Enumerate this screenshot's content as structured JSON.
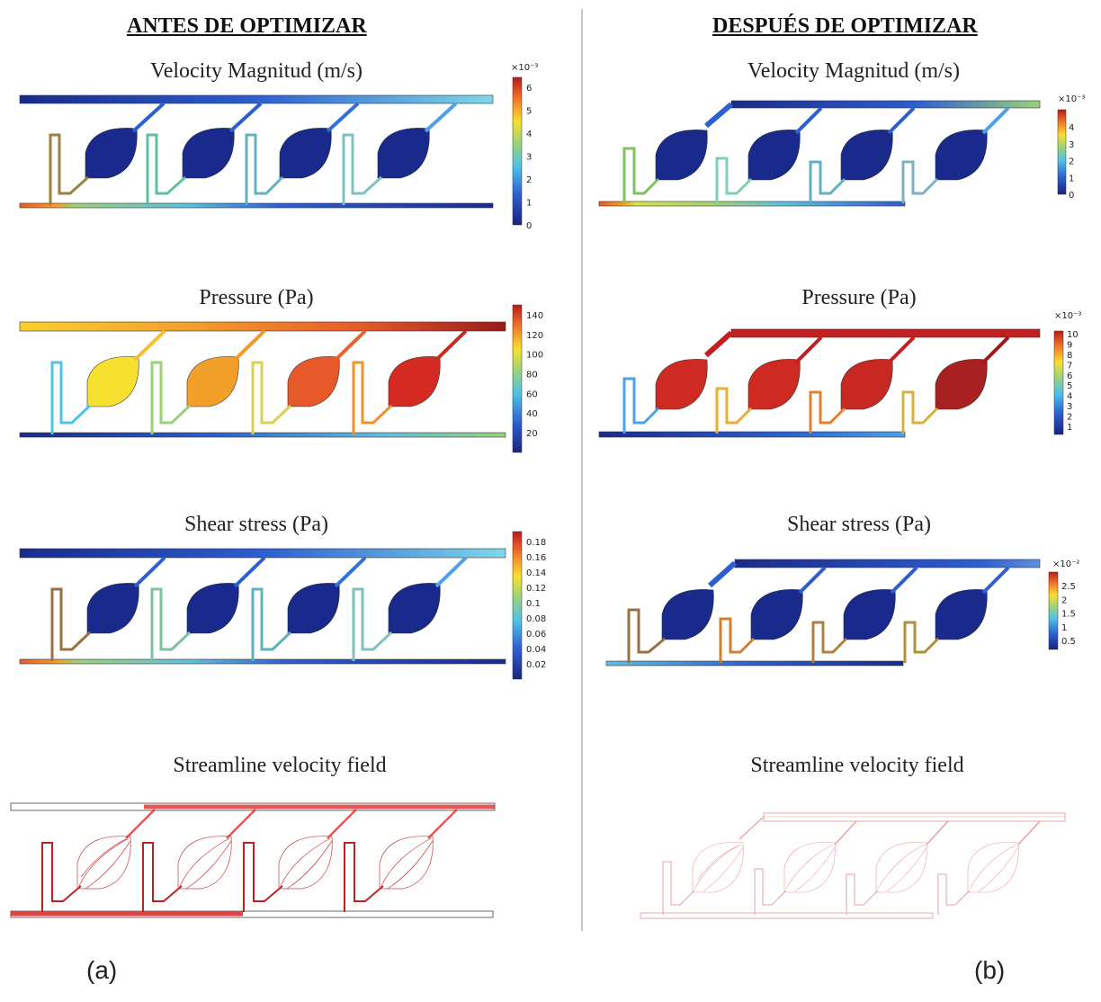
{
  "headers": {
    "left": "ANTES DE OPTIMIZAR",
    "right": "DESPUÉS DE OPTIMIZAR"
  },
  "panel_labels": {
    "left": "(a)",
    "right": "(b)"
  },
  "titles": {
    "velocity": "Velocity Magnitud (m/s)",
    "pressure": "Pressure (Pa)",
    "shear": "Shear stress (Pa)",
    "streamline": "Streamline velocity field"
  },
  "colorbars": {
    "left_velocity": {
      "exponent": "×10⁻³",
      "ticks": [
        "6",
        "5",
        "4",
        "3",
        "2",
        "1",
        "0"
      ]
    },
    "left_pressure": {
      "exponent": "",
      "ticks": [
        "140",
        "120",
        "100",
        "80",
        "60",
        "40",
        "20"
      ]
    },
    "left_shear": {
      "exponent": "",
      "ticks": [
        "0.18",
        "0.16",
        "0.14",
        "0.12",
        "0.1",
        "0.08",
        "0.06",
        "0.04",
        "0.02"
      ]
    },
    "right_velocity": {
      "exponent": "×10⁻³",
      "ticks": [
        "4",
        "3",
        "2",
        "1",
        "0"
      ]
    },
    "right_pressure": {
      "exponent": "×10⁻³",
      "ticks": [
        "10",
        "9",
        "8",
        "7",
        "6",
        "5",
        "4",
        "3",
        "2",
        "1"
      ]
    },
    "right_shear": {
      "exponent": "×10⁻²",
      "ticks": [
        "2.5",
        "2",
        "1.5",
        "1",
        "0.5"
      ]
    }
  },
  "colors": {
    "dark_blue": "#1a2a8c",
    "blue": "#2c5fd0",
    "light_blue": "#5fc0e0",
    "cyan": "#7fd8d8",
    "green": "#9ad27a",
    "yellow": "#f8e030",
    "orange": "#f3a02a",
    "orange_red": "#e8592a",
    "red": "#d42a22",
    "dark_red": "#9a1a1a"
  }
}
